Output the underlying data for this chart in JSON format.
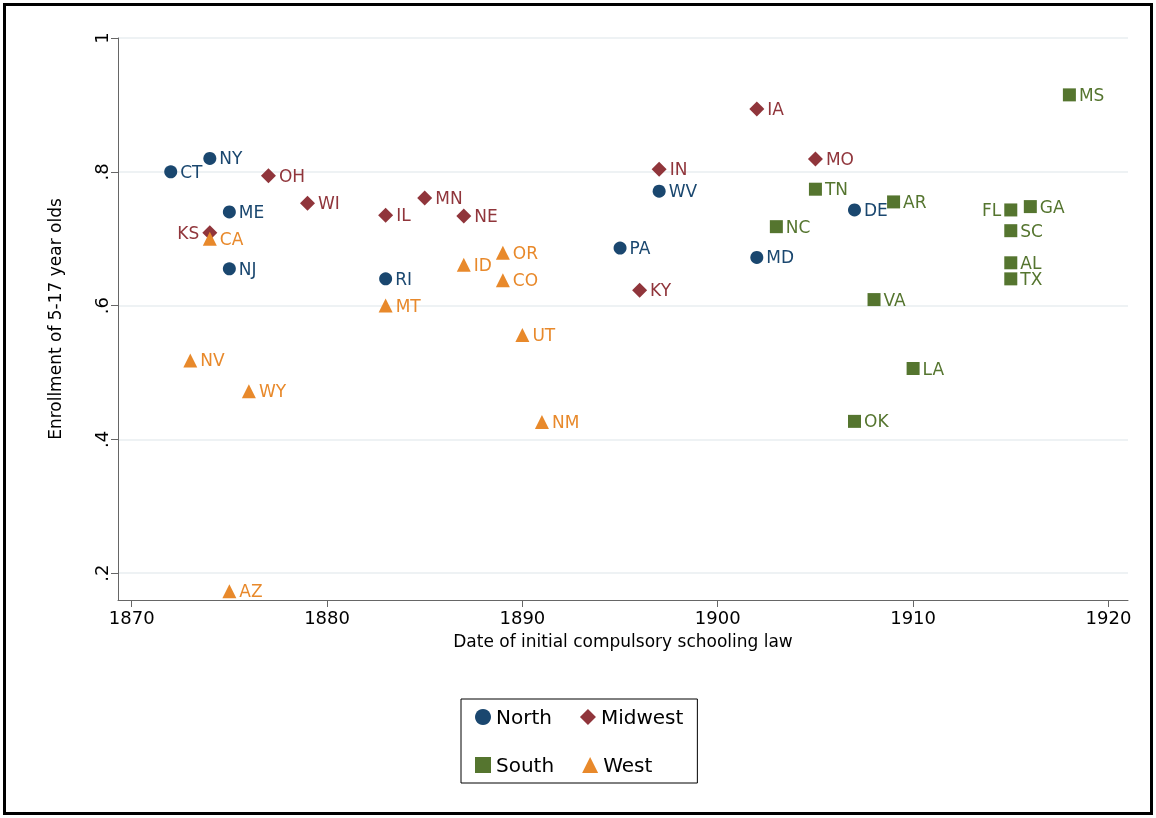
{
  "chart_data": {
    "type": "scatter",
    "xlabel": "Date of initial compulsory schooling law",
    "ylabel": "Enrollment of 5-17 year olds",
    "xlim": [
      1869.3,
      1921
    ],
    "xticks": [
      1870,
      1880,
      1890,
      1900,
      1910,
      1920
    ],
    "ylim": [
      0.16,
      1
    ],
    "yticks": [
      {
        "value": 0.2,
        "label": ".2"
      },
      {
        "value": 0.4,
        "label": ".4"
      },
      {
        "value": 0.6,
        "label": ".6"
      },
      {
        "value": 0.8,
        "label": ".8"
      },
      1
    ],
    "grid": "y",
    "legend": "bottom",
    "series": [
      {
        "name": "North",
        "color": "#1a476f",
        "marker": "circle",
        "x": [
          1872,
          1874,
          1875,
          1875,
          1883,
          1895,
          1897,
          1902,
          1907
        ],
        "values": [
          0.8,
          0.82,
          0.74,
          0.655,
          0.64,
          0.686,
          0.771,
          0.672,
          0.743
        ],
        "value_labels": [
          "CT",
          "NY",
          "ME",
          "NJ",
          "RI",
          "PA",
          "WV",
          "MD",
          "DE"
        ]
      },
      {
        "name": "Midwest",
        "color": "#90353b",
        "marker": "diamond",
        "x": [
          1877,
          1879,
          1874,
          1883,
          1885,
          1887,
          1902,
          1905,
          1897,
          1896
        ],
        "values": [
          0.794,
          0.753,
          0.709,
          0.735,
          0.761,
          0.734,
          0.894,
          0.819,
          0.804,
          0.623
        ],
        "value_labels": [
          "OH",
          "WI",
          "KS",
          "IL",
          "MN",
          "NE",
          "IA",
          "MO",
          "IN",
          "KY"
        ]
      },
      {
        "name": "South",
        "color": "#55752f",
        "marker": "square",
        "x": [
          1918,
          1905,
          1909,
          1903,
          1915,
          1916,
          1915,
          1915,
          1915,
          1908,
          1910,
          1907
        ],
        "values": [
          0.915,
          0.774,
          0.755,
          0.718,
          0.743,
          0.748,
          0.712,
          0.664,
          0.64,
          0.609,
          0.506,
          0.427
        ],
        "value_labels": [
          "MS",
          "TN",
          "AR",
          "NC",
          "FL",
          "GA",
          "SC",
          "AL",
          "TX",
          "VA",
          "LA",
          "OK"
        ]
      },
      {
        "name": "West",
        "color": "#e8892b",
        "marker": "triangle",
        "x": [
          1874,
          1889,
          1887,
          1889,
          1883,
          1890,
          1873,
          1876,
          1891,
          1875
        ],
        "values": [
          0.7,
          0.679,
          0.661,
          0.638,
          0.6,
          0.556,
          0.518,
          0.472,
          0.426,
          0.173
        ],
        "value_labels": [
          "CA",
          "OR",
          "ID",
          "CO",
          "MT",
          "UT",
          "NV",
          "WY",
          "NM",
          "AZ"
        ]
      }
    ]
  }
}
